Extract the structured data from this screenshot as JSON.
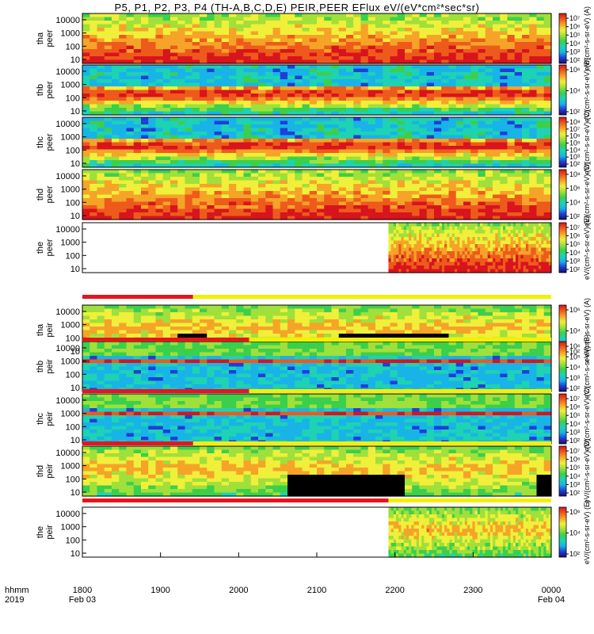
{
  "title": "P5, P1, P2, P3, P4 (TH-A,B,C,D,E) PEIR,PEER EFlux eV/(eV*cm²*sec*sr)",
  "x_axis": {
    "row_label_1": "hhmm",
    "row_label_2": "2019",
    "ticks": [
      "1800",
      "1900",
      "2000",
      "2100",
      "2200",
      "2300",
      "0000"
    ],
    "date_labels": [
      {
        "text": "Feb 03",
        "at": "1800"
      },
      {
        "text": "Feb 04",
        "at": "0000"
      }
    ]
  },
  "chart_data": [
    {
      "type": "heatmap",
      "probe": "tha",
      "species": "peer",
      "ylabel": [
        "tha",
        "peer"
      ],
      "y_scale": "log",
      "ylim": [
        5,
        30000
      ],
      "yticks": [
        "10000",
        "1000",
        "100",
        "10"
      ],
      "xlim": [
        "1800",
        "0000"
      ],
      "colorbar_ticks": [
        "10⁷",
        "10⁶",
        "10⁵",
        "10⁴",
        "10³",
        "10²"
      ],
      "colorbar_label": "eV/(cm²-s-sr-eV) (A)",
      "data_start": "1800",
      "pattern": "ring"
    },
    {
      "type": "heatmap",
      "probe": "thb",
      "species": "peer",
      "ylabel": [
        "thb",
        "peer"
      ],
      "y_scale": "log",
      "ylim": [
        5,
        30000
      ],
      "yticks": [
        "10000",
        "1000",
        "100",
        "10"
      ],
      "xlim": [
        "1800",
        "0000"
      ],
      "colorbar_ticks": [
        "10⁶",
        "10⁴",
        "10²"
      ],
      "colorbar_label": "eV/(cm²-s-sr-eV) (B)",
      "data_start": "1800",
      "pattern": "band"
    },
    {
      "type": "heatmap",
      "probe": "thc",
      "species": "peer",
      "ylabel": [
        "thc",
        "peer"
      ],
      "y_scale": "log",
      "ylim": [
        5,
        30000
      ],
      "yticks": [
        "10000",
        "1000",
        "100",
        "10"
      ],
      "xlim": [
        "1800",
        "0000"
      ],
      "colorbar_ticks": [
        "10⁸",
        "10⁷",
        "10⁶",
        "10⁵",
        "10⁴",
        "10³",
        "10²"
      ],
      "colorbar_label": "eV/(cm²-s-sr-eV) (C)",
      "data_start": "1800",
      "pattern": "band"
    },
    {
      "type": "heatmap",
      "probe": "thd",
      "species": "peer",
      "ylabel": [
        "thd",
        "peer"
      ],
      "y_scale": "log",
      "ylim": [
        5,
        30000
      ],
      "yticks": [
        "10000",
        "1000",
        "100",
        "10"
      ],
      "xlim": [
        "1800",
        "0000"
      ],
      "colorbar_ticks": [
        "10⁸",
        "10⁶",
        "10⁴",
        "10²"
      ],
      "colorbar_label": "eV/(cm²-s-sr-eV) (D)",
      "data_start": "1800",
      "pattern": "ring"
    },
    {
      "type": "heatmap",
      "probe": "the",
      "species": "peer",
      "ylabel": [
        "the",
        "peer"
      ],
      "y_scale": "log",
      "ylim": [
        5,
        30000
      ],
      "yticks": [
        "10000",
        "1000",
        "100",
        "10"
      ],
      "xlim": [
        "1800",
        "0000"
      ],
      "colorbar_ticks": [
        "10⁷",
        "10⁶",
        "10⁵",
        "10⁴",
        "10³",
        "10²"
      ],
      "colorbar_label": "eV/(cm²-s-sr-eV) (E)",
      "data_start": "2155",
      "pattern": "ring"
    },
    {
      "type": "heatmap",
      "probe": "tha",
      "species": "peir",
      "ylabel": [
        "tha",
        "peir"
      ],
      "y_scale": "log",
      "ylim": [
        5,
        30000
      ],
      "yticks": [
        "10000",
        "1000",
        "100",
        "10"
      ],
      "xlim": [
        "1800",
        "0000"
      ],
      "colorbar_ticks": [
        "10⁶",
        "10⁴",
        "10²"
      ],
      "colorbar_label": "eV/(cm²-s-sr-eV) (A)",
      "data_start": "1800",
      "pattern": "ion"
    },
    {
      "type": "heatmap",
      "probe": "thb",
      "species": "peir",
      "ylabel": [
        "thb",
        "peir"
      ],
      "y_scale": "log",
      "ylim": [
        5,
        30000
      ],
      "yticks": [
        "10000",
        "1000",
        "100",
        "10"
      ],
      "xlim": [
        "1800",
        "0000"
      ],
      "colorbar_ticks": [
        "10⁶",
        "10⁵",
        "10⁴",
        "10³",
        "10²"
      ],
      "colorbar_label": "eV/(cm²-s-sr-eV) (B)",
      "data_start": "1800",
      "pattern": "ionband"
    },
    {
      "type": "heatmap",
      "probe": "thc",
      "species": "peir",
      "ylabel": [
        "thc",
        "peir"
      ],
      "y_scale": "log",
      "ylim": [
        5,
        30000
      ],
      "yticks": [
        "10000",
        "1000",
        "100",
        "10"
      ],
      "xlim": [
        "1800",
        "0000"
      ],
      "colorbar_ticks": [
        "10⁷",
        "10⁶",
        "10⁵",
        "10⁴",
        "10³",
        "10²"
      ],
      "colorbar_label": "eV/(cm²-s-sr-eV) (C)",
      "data_start": "1800",
      "pattern": "ionband"
    },
    {
      "type": "heatmap",
      "probe": "thd",
      "species": "peir",
      "ylabel": [
        "thd",
        "peir"
      ],
      "y_scale": "log",
      "ylim": [
        5,
        30000
      ],
      "yticks": [
        "10000",
        "1000",
        "100",
        "10"
      ],
      "xlim": [
        "1800",
        "0000"
      ],
      "colorbar_ticks": [
        "10⁷",
        "10⁶",
        "10⁵",
        "10⁴",
        "10³",
        "10²"
      ],
      "colorbar_label": "eV/(cm²-s-sr-eV) (D)",
      "data_start": "1800",
      "pattern": "ion2"
    },
    {
      "type": "heatmap",
      "probe": "the",
      "species": "peir",
      "ylabel": [
        "the",
        "peir"
      ],
      "y_scale": "log",
      "ylim": [
        5,
        30000
      ],
      "yticks": [
        "10000",
        "1000",
        "100",
        "10"
      ],
      "xlim": [
        "1800",
        "0000"
      ],
      "colorbar_ticks": [
        "10⁶",
        "10⁴",
        "10²"
      ],
      "colorbar_label": "eV/(cm²-s-sr-eV) (E)",
      "data_start": "2155",
      "pattern": "ion3"
    }
  ],
  "colors": {
    "colorbar": [
      "#1a0a6e",
      "#1f3fd9",
      "#18b4e8",
      "#1ed2b4",
      "#3ccf4c",
      "#a0e03a",
      "#f0ef3a",
      "#f5a428",
      "#ee5a1c",
      "#d8141c"
    ],
    "flag_red": "#e8141c",
    "flag_yellow": "#f4f000",
    "no_data": "#000000"
  }
}
